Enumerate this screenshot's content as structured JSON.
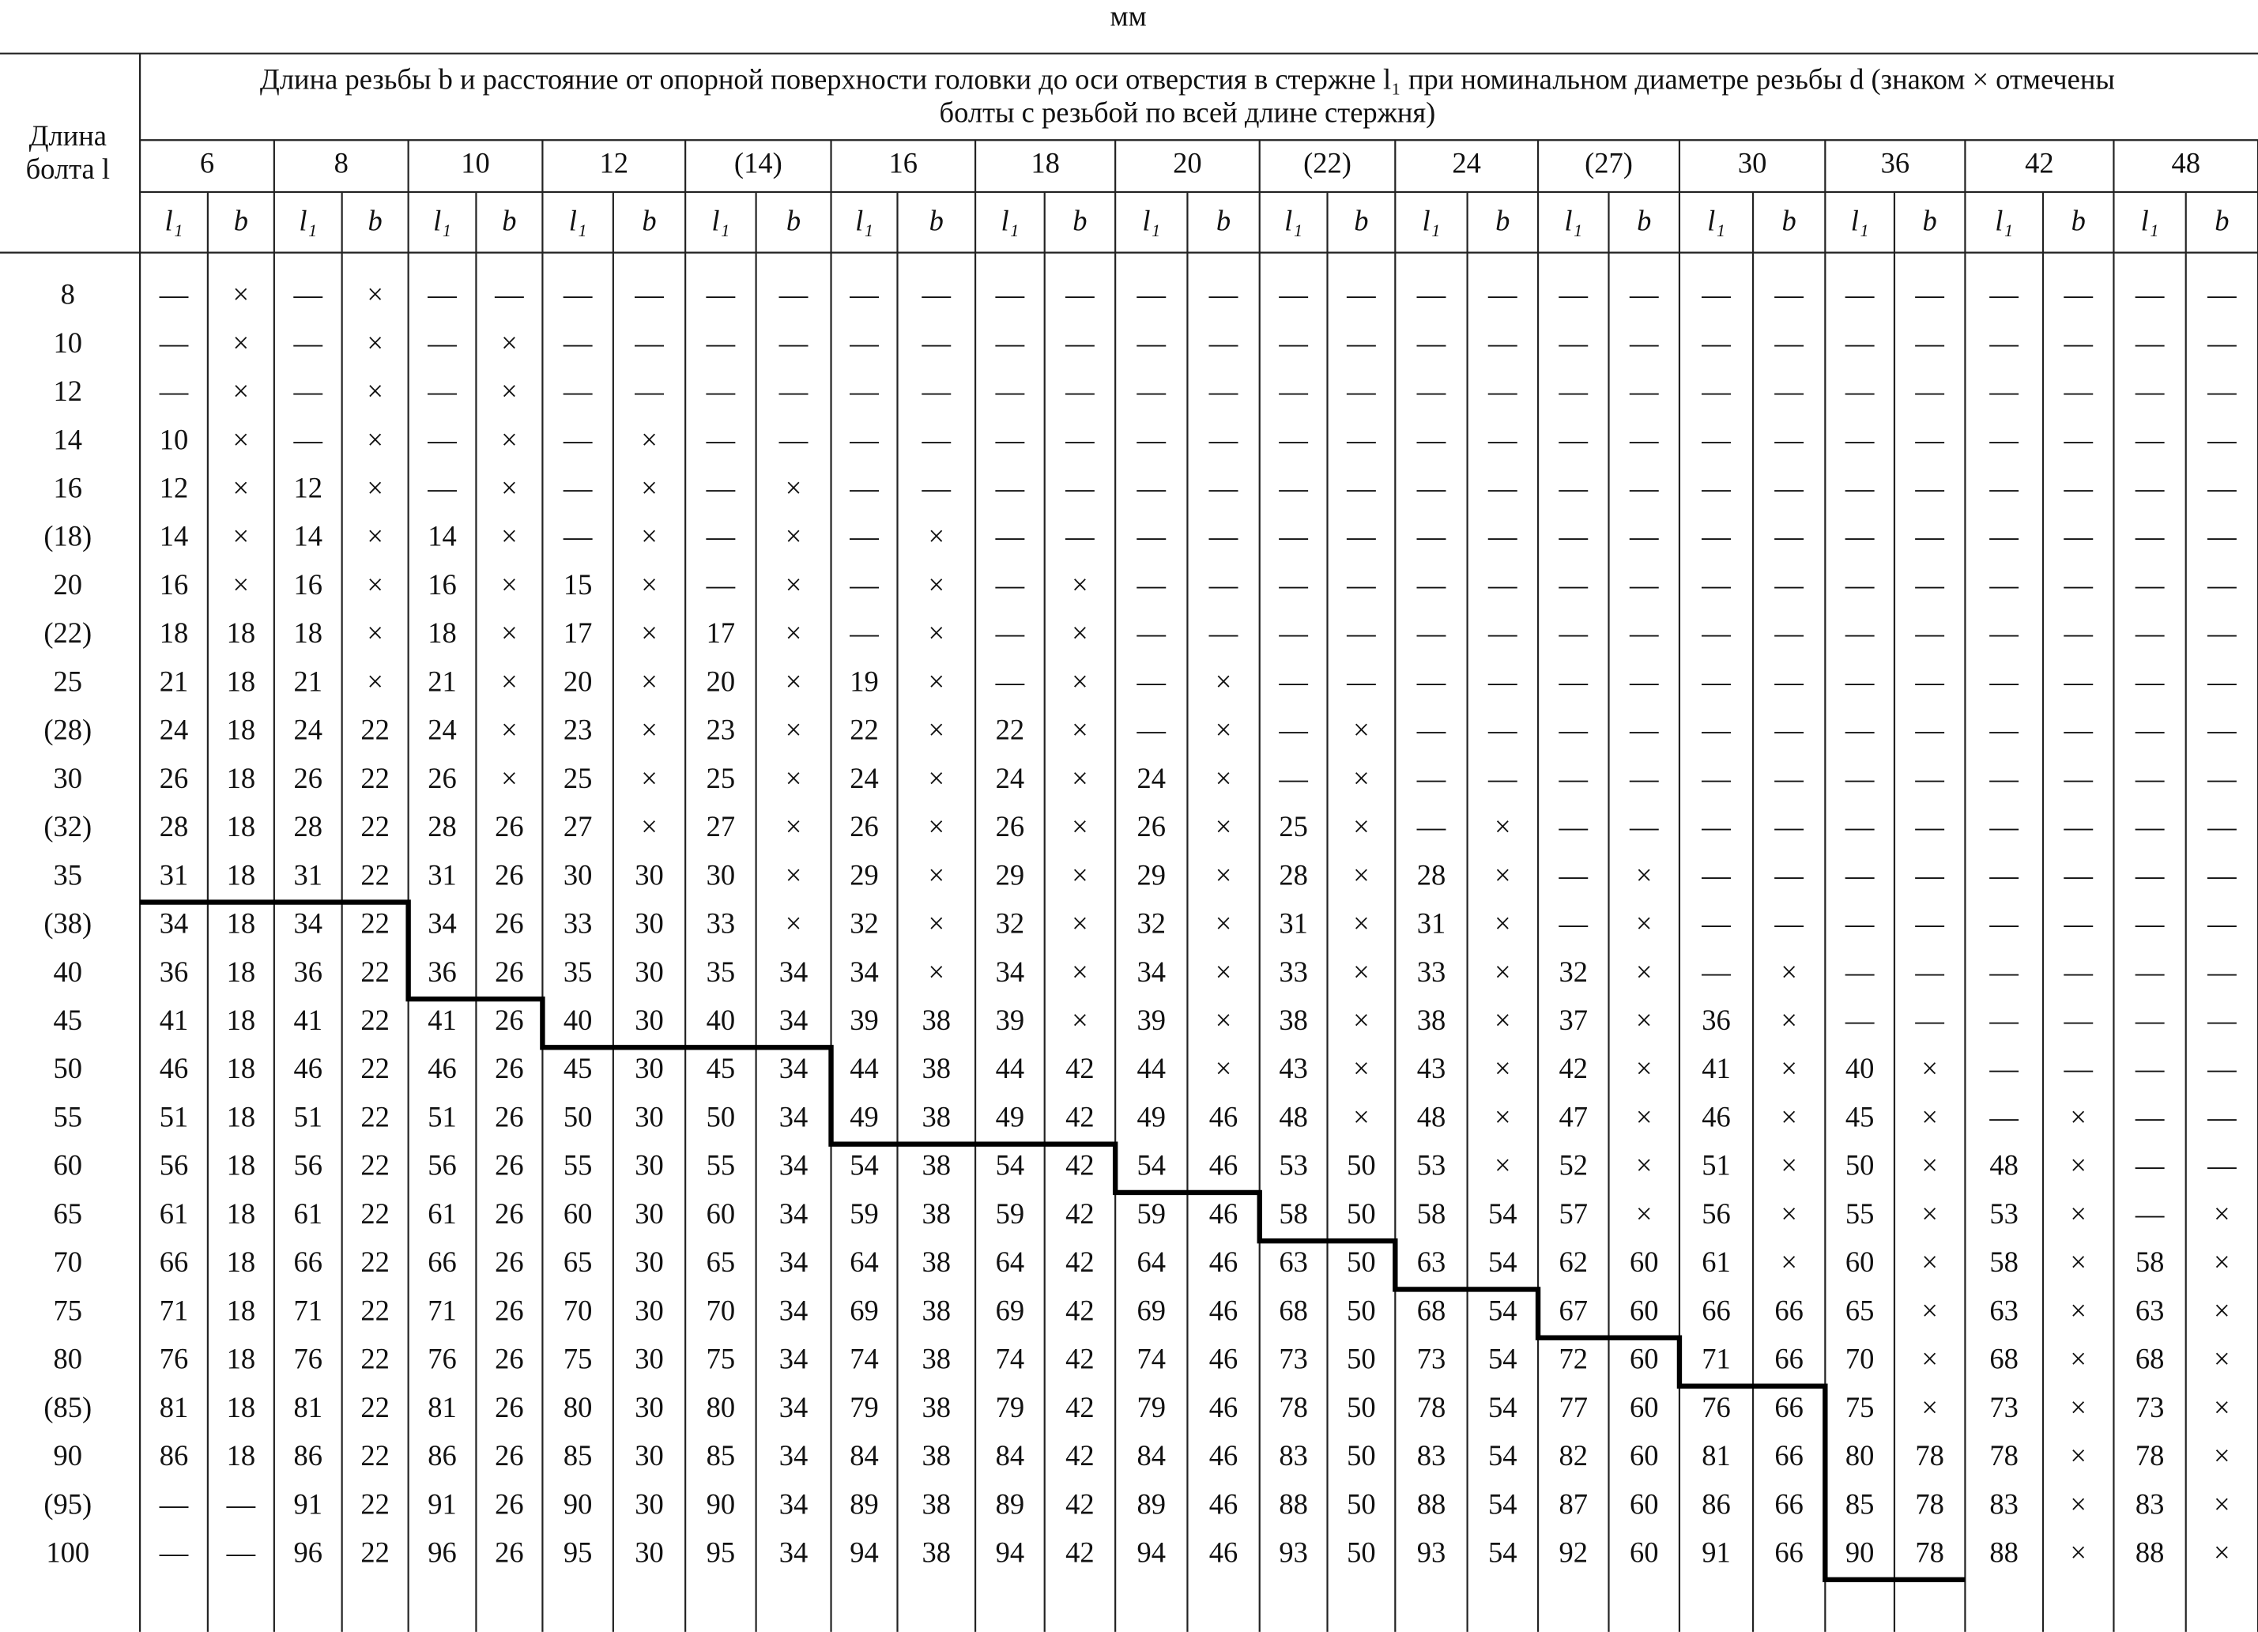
{
  "unit": "мм",
  "corner": [
    "Длина",
    "болта l"
  ],
  "header": [
    "Длина резьбы b и расстояние от опорной поверхности головки до оси отверстия в стержне l₁ при номинальном диаметре резьбы d (знаком × отмечены",
    "болты с резьбой по всей длине стержня)"
  ],
  "sub": [
    "l₁",
    "b"
  ],
  "diameters": [
    "6",
    "8",
    "10",
    "12",
    "(14)",
    "16",
    "18",
    "20",
    "(22)",
    "24",
    "(27)",
    "30",
    "36",
    "42",
    "48"
  ],
  "rows": [
    {
      "length": "8",
      "cells": [
        "—",
        "×",
        "—",
        "×",
        "—",
        "—",
        "—",
        "—",
        "—",
        "—",
        "—",
        "—",
        "—",
        "—",
        "—",
        "—",
        "—",
        "—",
        "—",
        "—",
        "—",
        "—",
        "—",
        "—",
        "—",
        "—",
        "—",
        "—",
        "—",
        "—"
      ]
    },
    {
      "length": "10",
      "cells": [
        "—",
        "×",
        "—",
        "×",
        "—",
        "×",
        "—",
        "—",
        "—",
        "—",
        "—",
        "—",
        "—",
        "—",
        "—",
        "—",
        "—",
        "—",
        "—",
        "—",
        "—",
        "—",
        "—",
        "—",
        "—",
        "—",
        "—",
        "—",
        "—",
        "—"
      ]
    },
    {
      "length": "12",
      "cells": [
        "—",
        "×",
        "—",
        "×",
        "—",
        "×",
        "—",
        "—",
        "—",
        "—",
        "—",
        "—",
        "—",
        "—",
        "—",
        "—",
        "—",
        "—",
        "—",
        "—",
        "—",
        "—",
        "—",
        "—",
        "—",
        "—",
        "—",
        "—",
        "—",
        "—"
      ]
    },
    {
      "length": "14",
      "cells": [
        "10",
        "×",
        "—",
        "×",
        "—",
        "×",
        "—",
        "×",
        "—",
        "—",
        "—",
        "—",
        "—",
        "—",
        "—",
        "—",
        "—",
        "—",
        "—",
        "—",
        "—",
        "—",
        "—",
        "—",
        "—",
        "—",
        "—",
        "—",
        "—",
        "—"
      ]
    },
    {
      "length": "16",
      "cells": [
        "12",
        "×",
        "12",
        "×",
        "—",
        "×",
        "—",
        "×",
        "—",
        "×",
        "—",
        "—",
        "—",
        "—",
        "—",
        "—",
        "—",
        "—",
        "—",
        "—",
        "—",
        "—",
        "—",
        "—",
        "—",
        "—",
        "—",
        "—",
        "—",
        "—"
      ]
    },
    {
      "length": "(18)",
      "cells": [
        "14",
        "×",
        "14",
        "×",
        "14",
        "×",
        "—",
        "×",
        "—",
        "×",
        "—",
        "×",
        "—",
        "—",
        "—",
        "—",
        "—",
        "—",
        "—",
        "—",
        "—",
        "—",
        "—",
        "—",
        "—",
        "—",
        "—",
        "—",
        "—",
        "—"
      ]
    },
    {
      "length": "20",
      "cells": [
        "16",
        "×",
        "16",
        "×",
        "16",
        "×",
        "15",
        "×",
        "—",
        "×",
        "—",
        "×",
        "—",
        "×",
        "—",
        "—",
        "—",
        "—",
        "—",
        "—",
        "—",
        "—",
        "—",
        "—",
        "—",
        "—",
        "—",
        "—",
        "—",
        "—"
      ]
    },
    {
      "length": "(22)",
      "cells": [
        "18",
        "18",
        "18",
        "×",
        "18",
        "×",
        "17",
        "×",
        "17",
        "×",
        "—",
        "×",
        "—",
        "×",
        "—",
        "—",
        "—",
        "—",
        "—",
        "—",
        "—",
        "—",
        "—",
        "—",
        "—",
        "—",
        "—",
        "—",
        "—",
        "—"
      ]
    },
    {
      "length": "25",
      "cells": [
        "21",
        "18",
        "21",
        "×",
        "21",
        "×",
        "20",
        "×",
        "20",
        "×",
        "19",
        "×",
        "—",
        "×",
        "—",
        "×",
        "—",
        "—",
        "—",
        "—",
        "—",
        "—",
        "—",
        "—",
        "—",
        "—",
        "—",
        "—",
        "—",
        "—"
      ]
    },
    {
      "length": "(28)",
      "cells": [
        "24",
        "18",
        "24",
        "22",
        "24",
        "×",
        "23",
        "×",
        "23",
        "×",
        "22",
        "×",
        "22",
        "×",
        "—",
        "×",
        "—",
        "×",
        "—",
        "—",
        "—",
        "—",
        "—",
        "—",
        "—",
        "—",
        "—",
        "—",
        "—",
        "—"
      ]
    },
    {
      "length": "30",
      "cells": [
        "26",
        "18",
        "26",
        "22",
        "26",
        "×",
        "25",
        "×",
        "25",
        "×",
        "24",
        "×",
        "24",
        "×",
        "24",
        "×",
        "—",
        "×",
        "—",
        "—",
        "—",
        "—",
        "—",
        "—",
        "—",
        "—",
        "—",
        "—",
        "—",
        "—"
      ]
    },
    {
      "length": "(32)",
      "cells": [
        "28",
        "18",
        "28",
        "22",
        "28",
        "26",
        "27",
        "×",
        "27",
        "×",
        "26",
        "×",
        "26",
        "×",
        "26",
        "×",
        "25",
        "×",
        "—",
        "×",
        "—",
        "—",
        "—",
        "—",
        "—",
        "—",
        "—",
        "—",
        "—",
        "—"
      ]
    },
    {
      "length": "35",
      "cells": [
        "31",
        "18",
        "31",
        "22",
        "31",
        "26",
        "30",
        "30",
        "30",
        "×",
        "29",
        "×",
        "29",
        "×",
        "29",
        "×",
        "28",
        "×",
        "28",
        "×",
        "—",
        "×",
        "—",
        "—",
        "—",
        "—",
        "—",
        "—",
        "—",
        "—"
      ]
    },
    {
      "length": "(38)",
      "cells": [
        "34",
        "18",
        "34",
        "22",
        "34",
        "26",
        "33",
        "30",
        "33",
        "×",
        "32",
        "×",
        "32",
        "×",
        "32",
        "×",
        "31",
        "×",
        "31",
        "×",
        "—",
        "×",
        "—",
        "—",
        "—",
        "—",
        "—",
        "—",
        "—",
        "—"
      ]
    },
    {
      "length": "40",
      "cells": [
        "36",
        "18",
        "36",
        "22",
        "36",
        "26",
        "35",
        "30",
        "35",
        "34",
        "34",
        "×",
        "34",
        "×",
        "34",
        "×",
        "33",
        "×",
        "33",
        "×",
        "32",
        "×",
        "—",
        "×",
        "—",
        "—",
        "—",
        "—",
        "—",
        "—"
      ]
    },
    {
      "length": "45",
      "cells": [
        "41",
        "18",
        "41",
        "22",
        "41",
        "26",
        "40",
        "30",
        "40",
        "34",
        "39",
        "38",
        "39",
        "×",
        "39",
        "×",
        "38",
        "×",
        "38",
        "×",
        "37",
        "×",
        "36",
        "×",
        "—",
        "—",
        "—",
        "—",
        "—",
        "—"
      ]
    },
    {
      "length": "50",
      "cells": [
        "46",
        "18",
        "46",
        "22",
        "46",
        "26",
        "45",
        "30",
        "45",
        "34",
        "44",
        "38",
        "44",
        "42",
        "44",
        "×",
        "43",
        "×",
        "43",
        "×",
        "42",
        "×",
        "41",
        "×",
        "40",
        "×",
        "—",
        "—",
        "—",
        "—"
      ]
    },
    {
      "length": "55",
      "cells": [
        "51",
        "18",
        "51",
        "22",
        "51",
        "26",
        "50",
        "30",
        "50",
        "34",
        "49",
        "38",
        "49",
        "42",
        "49",
        "46",
        "48",
        "×",
        "48",
        "×",
        "47",
        "×",
        "46",
        "×",
        "45",
        "×",
        "—",
        "×",
        "—",
        "—"
      ]
    },
    {
      "length": "60",
      "cells": [
        "56",
        "18",
        "56",
        "22",
        "56",
        "26",
        "55",
        "30",
        "55",
        "34",
        "54",
        "38",
        "54",
        "42",
        "54",
        "46",
        "53",
        "50",
        "53",
        "×",
        "52",
        "×",
        "51",
        "×",
        "50",
        "×",
        "48",
        "×",
        "—",
        "—"
      ]
    },
    {
      "length": "65",
      "cells": [
        "61",
        "18",
        "61",
        "22",
        "61",
        "26",
        "60",
        "30",
        "60",
        "34",
        "59",
        "38",
        "59",
        "42",
        "59",
        "46",
        "58",
        "50",
        "58",
        "54",
        "57",
        "×",
        "56",
        "×",
        "55",
        "×",
        "53",
        "×",
        "—",
        "×"
      ]
    },
    {
      "length": "70",
      "cells": [
        "66",
        "18",
        "66",
        "22",
        "66",
        "26",
        "65",
        "30",
        "65",
        "34",
        "64",
        "38",
        "64",
        "42",
        "64",
        "46",
        "63",
        "50",
        "63",
        "54",
        "62",
        "60",
        "61",
        "×",
        "60",
        "×",
        "58",
        "×",
        "58",
        "×"
      ]
    },
    {
      "length": "75",
      "cells": [
        "71",
        "18",
        "71",
        "22",
        "71",
        "26",
        "70",
        "30",
        "70",
        "34",
        "69",
        "38",
        "69",
        "42",
        "69",
        "46",
        "68",
        "50",
        "68",
        "54",
        "67",
        "60",
        "66",
        "66",
        "65",
        "×",
        "63",
        "×",
        "63",
        "×"
      ]
    },
    {
      "length": "80",
      "cells": [
        "76",
        "18",
        "76",
        "22",
        "76",
        "26",
        "75",
        "30",
        "75",
        "34",
        "74",
        "38",
        "74",
        "42",
        "74",
        "46",
        "73",
        "50",
        "73",
        "54",
        "72",
        "60",
        "71",
        "66",
        "70",
        "×",
        "68",
        "×",
        "68",
        "×"
      ]
    },
    {
      "length": "(85)",
      "cells": [
        "81",
        "18",
        "81",
        "22",
        "81",
        "26",
        "80",
        "30",
        "80",
        "34",
        "79",
        "38",
        "79",
        "42",
        "79",
        "46",
        "78",
        "50",
        "78",
        "54",
        "77",
        "60",
        "76",
        "66",
        "75",
        "×",
        "73",
        "×",
        "73",
        "×"
      ]
    },
    {
      "length": "90",
      "cells": [
        "86",
        "18",
        "86",
        "22",
        "86",
        "26",
        "85",
        "30",
        "85",
        "34",
        "84",
        "38",
        "84",
        "42",
        "84",
        "46",
        "83",
        "50",
        "83",
        "54",
        "82",
        "60",
        "81",
        "66",
        "80",
        "78",
        "78",
        "×",
        "78",
        "×"
      ]
    },
    {
      "length": "(95)",
      "cells": [
        "—",
        "—",
        "91",
        "22",
        "91",
        "26",
        "90",
        "30",
        "90",
        "34",
        "89",
        "38",
        "89",
        "42",
        "89",
        "46",
        "88",
        "50",
        "88",
        "54",
        "87",
        "60",
        "86",
        "66",
        "85",
        "78",
        "83",
        "×",
        "83",
        "×"
      ]
    },
    {
      "length": "100",
      "cells": [
        "—",
        "—",
        "96",
        "22",
        "96",
        "26",
        "95",
        "30",
        "95",
        "34",
        "94",
        "38",
        "94",
        "42",
        "94",
        "46",
        "93",
        "50",
        "93",
        "54",
        "92",
        "60",
        "91",
        "66",
        "90",
        "78",
        "88",
        "×",
        "88",
        "×"
      ]
    }
  ]
}
